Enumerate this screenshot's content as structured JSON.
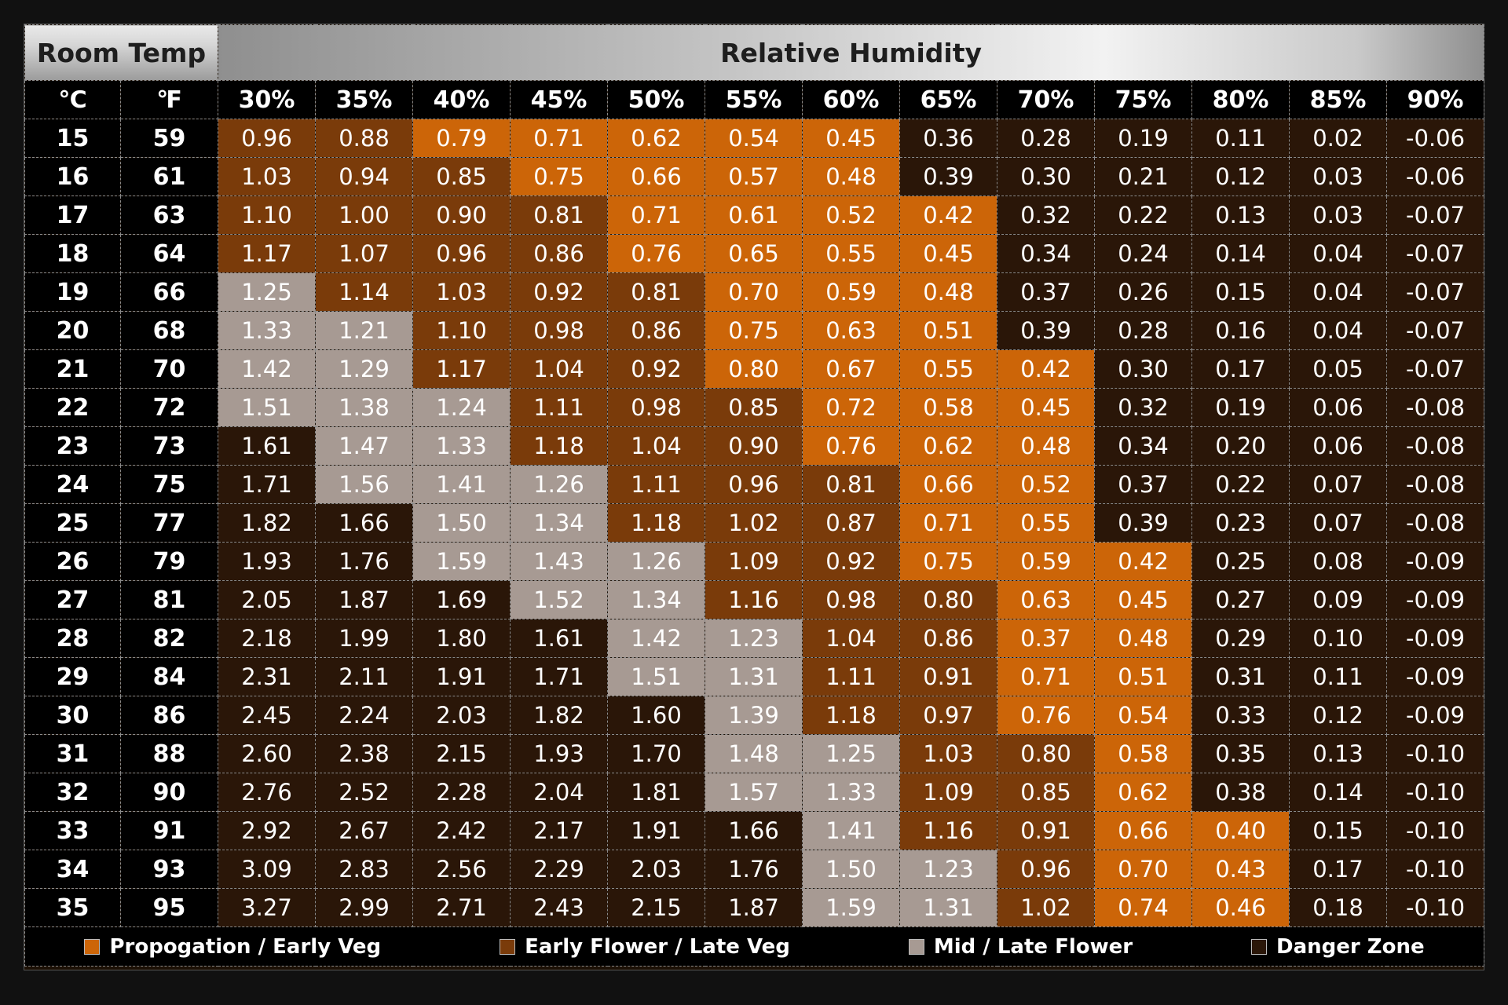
{
  "chart_data": {
    "type": "heatmap",
    "header": {
      "room_temp": "Room Temp",
      "relative_humidity": "Relative Humidity",
      "celsius_unit": "℃",
      "fahrenheit_unit": "℉"
    },
    "humidity_columns": [
      "30%",
      "35%",
      "40%",
      "45%",
      "50%",
      "55%",
      "60%",
      "65%",
      "70%",
      "75%",
      "80%",
      "85%",
      "90%"
    ],
    "rows": [
      {
        "c": "15",
        "f": "59",
        "values": [
          "0.96",
          "0.88",
          "0.79",
          "0.71",
          "0.62",
          "0.54",
          "0.45",
          "0.36",
          "0.28",
          "0.19",
          "0.11",
          "0.02",
          "-0.06"
        ],
        "zones": [
          1,
          1,
          0,
          0,
          0,
          0,
          0,
          3,
          3,
          3,
          3,
          3,
          3
        ]
      },
      {
        "c": "16",
        "f": "61",
        "values": [
          "1.03",
          "0.94",
          "0.85",
          "0.75",
          "0.66",
          "0.57",
          "0.48",
          "0.39",
          "0.30",
          "0.21",
          "0.12",
          "0.03",
          "-0.06"
        ],
        "zones": [
          1,
          1,
          1,
          0,
          0,
          0,
          0,
          3,
          3,
          3,
          3,
          3,
          3
        ]
      },
      {
        "c": "17",
        "f": "63",
        "values": [
          "1.10",
          "1.00",
          "0.90",
          "0.81",
          "0.71",
          "0.61",
          "0.52",
          "0.42",
          "0.32",
          "0.22",
          "0.13",
          "0.03",
          "-0.07"
        ],
        "zones": [
          1,
          1,
          1,
          1,
          0,
          0,
          0,
          0,
          3,
          3,
          3,
          3,
          3
        ]
      },
      {
        "c": "18",
        "f": "64",
        "values": [
          "1.17",
          "1.07",
          "0.96",
          "0.86",
          "0.76",
          "0.65",
          "0.55",
          "0.45",
          "0.34",
          "0.24",
          "0.14",
          "0.04",
          "-0.07"
        ],
        "zones": [
          1,
          1,
          1,
          1,
          0,
          0,
          0,
          0,
          3,
          3,
          3,
          3,
          3
        ]
      },
      {
        "c": "19",
        "f": "66",
        "values": [
          "1.25",
          "1.14",
          "1.03",
          "0.92",
          "0.81",
          "0.70",
          "0.59",
          "0.48",
          "0.37",
          "0.26",
          "0.15",
          "0.04",
          "-0.07"
        ],
        "zones": [
          2,
          1,
          1,
          1,
          1,
          0,
          0,
          0,
          3,
          3,
          3,
          3,
          3
        ]
      },
      {
        "c": "20",
        "f": "68",
        "values": [
          "1.33",
          "1.21",
          "1.10",
          "0.98",
          "0.86",
          "0.75",
          "0.63",
          "0.51",
          "0.39",
          "0.28",
          "0.16",
          "0.04",
          "-0.07"
        ],
        "zones": [
          2,
          2,
          1,
          1,
          1,
          0,
          0,
          0,
          3,
          3,
          3,
          3,
          3
        ]
      },
      {
        "c": "21",
        "f": "70",
        "values": [
          "1.42",
          "1.29",
          "1.17",
          "1.04",
          "0.92",
          "0.80",
          "0.67",
          "0.55",
          "0.42",
          "0.30",
          "0.17",
          "0.05",
          "-0.07"
        ],
        "zones": [
          2,
          2,
          1,
          1,
          1,
          0,
          0,
          0,
          0,
          3,
          3,
          3,
          3
        ]
      },
      {
        "c": "22",
        "f": "72",
        "values": [
          "1.51",
          "1.38",
          "1.24",
          "1.11",
          "0.98",
          "0.85",
          "0.72",
          "0.58",
          "0.45",
          "0.32",
          "0.19",
          "0.06",
          "-0.08"
        ],
        "zones": [
          2,
          2,
          2,
          1,
          1,
          1,
          0,
          0,
          0,
          3,
          3,
          3,
          3
        ]
      },
      {
        "c": "23",
        "f": "73",
        "values": [
          "1.61",
          "1.47",
          "1.33",
          "1.18",
          "1.04",
          "0.90",
          "0.76",
          "0.62",
          "0.48",
          "0.34",
          "0.20",
          "0.06",
          "-0.08"
        ],
        "zones": [
          3,
          2,
          2,
          1,
          1,
          1,
          0,
          0,
          0,
          3,
          3,
          3,
          3
        ]
      },
      {
        "c": "24",
        "f": "75",
        "values": [
          "1.71",
          "1.56",
          "1.41",
          "1.26",
          "1.11",
          "0.96",
          "0.81",
          "0.66",
          "0.52",
          "0.37",
          "0.22",
          "0.07",
          "-0.08"
        ],
        "zones": [
          3,
          2,
          2,
          2,
          1,
          1,
          1,
          0,
          0,
          3,
          3,
          3,
          3
        ]
      },
      {
        "c": "25",
        "f": "77",
        "values": [
          "1.82",
          "1.66",
          "1.50",
          "1.34",
          "1.18",
          "1.02",
          "0.87",
          "0.71",
          "0.55",
          "0.39",
          "0.23",
          "0.07",
          "-0.08"
        ],
        "zones": [
          3,
          3,
          2,
          2,
          1,
          1,
          1,
          0,
          0,
          3,
          3,
          3,
          3
        ]
      },
      {
        "c": "26",
        "f": "79",
        "values": [
          "1.93",
          "1.76",
          "1.59",
          "1.43",
          "1.26",
          "1.09",
          "0.92",
          "0.75",
          "0.59",
          "0.42",
          "0.25",
          "0.08",
          "-0.09"
        ],
        "zones": [
          3,
          3,
          2,
          2,
          2,
          1,
          1,
          0,
          0,
          0,
          3,
          3,
          3
        ]
      },
      {
        "c": "27",
        "f": "81",
        "values": [
          "2.05",
          "1.87",
          "1.69",
          "1.52",
          "1.34",
          "1.16",
          "0.98",
          "0.80",
          "0.63",
          "0.45",
          "0.27",
          "0.09",
          "-0.09"
        ],
        "zones": [
          3,
          3,
          3,
          2,
          2,
          1,
          1,
          1,
          0,
          0,
          3,
          3,
          3
        ]
      },
      {
        "c": "28",
        "f": "82",
        "values": [
          "2.18",
          "1.99",
          "1.80",
          "1.61",
          "1.42",
          "1.23",
          "1.04",
          "0.86",
          "0.37",
          "0.48",
          "0.29",
          "0.10",
          "-0.09"
        ],
        "zones": [
          3,
          3,
          3,
          3,
          2,
          2,
          1,
          1,
          0,
          0,
          3,
          3,
          3
        ]
      },
      {
        "c": "29",
        "f": "84",
        "values": [
          "2.31",
          "2.11",
          "1.91",
          "1.71",
          "1.51",
          "1.31",
          "1.11",
          "0.91",
          "0.71",
          "0.51",
          "0.31",
          "0.11",
          "-0.09"
        ],
        "zones": [
          3,
          3,
          3,
          3,
          2,
          2,
          1,
          1,
          0,
          0,
          3,
          3,
          3
        ]
      },
      {
        "c": "30",
        "f": "86",
        "values": [
          "2.45",
          "2.24",
          "2.03",
          "1.82",
          "1.60",
          "1.39",
          "1.18",
          "0.97",
          "0.76",
          "0.54",
          "0.33",
          "0.12",
          "-0.09"
        ],
        "zones": [
          3,
          3,
          3,
          3,
          3,
          2,
          1,
          1,
          0,
          0,
          3,
          3,
          3
        ]
      },
      {
        "c": "31",
        "f": "88",
        "values": [
          "2.60",
          "2.38",
          "2.15",
          "1.93",
          "1.70",
          "1.48",
          "1.25",
          "1.03",
          "0.80",
          "0.58",
          "0.35",
          "0.13",
          "-0.10"
        ],
        "zones": [
          3,
          3,
          3,
          3,
          3,
          2,
          2,
          1,
          1,
          0,
          3,
          3,
          3
        ]
      },
      {
        "c": "32",
        "f": "90",
        "values": [
          "2.76",
          "2.52",
          "2.28",
          "2.04",
          "1.81",
          "1.57",
          "1.33",
          "1.09",
          "0.85",
          "0.62",
          "0.38",
          "0.14",
          "-0.10"
        ],
        "zones": [
          3,
          3,
          3,
          3,
          3,
          2,
          2,
          1,
          1,
          0,
          3,
          3,
          3
        ]
      },
      {
        "c": "33",
        "f": "91",
        "values": [
          "2.92",
          "2.67",
          "2.42",
          "2.17",
          "1.91",
          "1.66",
          "1.41",
          "1.16",
          "0.91",
          "0.66",
          "0.40",
          "0.15",
          "-0.10"
        ],
        "zones": [
          3,
          3,
          3,
          3,
          3,
          3,
          2,
          1,
          1,
          0,
          0,
          3,
          3
        ]
      },
      {
        "c": "34",
        "f": "93",
        "values": [
          "3.09",
          "2.83",
          "2.56",
          "2.29",
          "2.03",
          "1.76",
          "1.50",
          "1.23",
          "0.96",
          "0.70",
          "0.43",
          "0.17",
          "-0.10"
        ],
        "zones": [
          3,
          3,
          3,
          3,
          3,
          3,
          2,
          2,
          1,
          0,
          0,
          3,
          3
        ]
      },
      {
        "c": "35",
        "f": "95",
        "values": [
          "3.27",
          "2.99",
          "2.71",
          "2.43",
          "2.15",
          "1.87",
          "1.59",
          "1.31",
          "1.02",
          "0.74",
          "0.46",
          "0.18",
          "-0.10"
        ],
        "zones": [
          3,
          3,
          3,
          3,
          3,
          3,
          2,
          2,
          1,
          0,
          0,
          3,
          3
        ]
      }
    ],
    "legend": [
      {
        "label": "Propogation / Early Veg",
        "color": "#cc6508"
      },
      {
        "label": "Early Flower / Late Veg",
        "color": "#7a3b0a"
      },
      {
        "label": "Mid / Late Flower",
        "color": "#a79a93"
      },
      {
        "label": "Danger Zone",
        "color": "#2a1608"
      }
    ]
  }
}
